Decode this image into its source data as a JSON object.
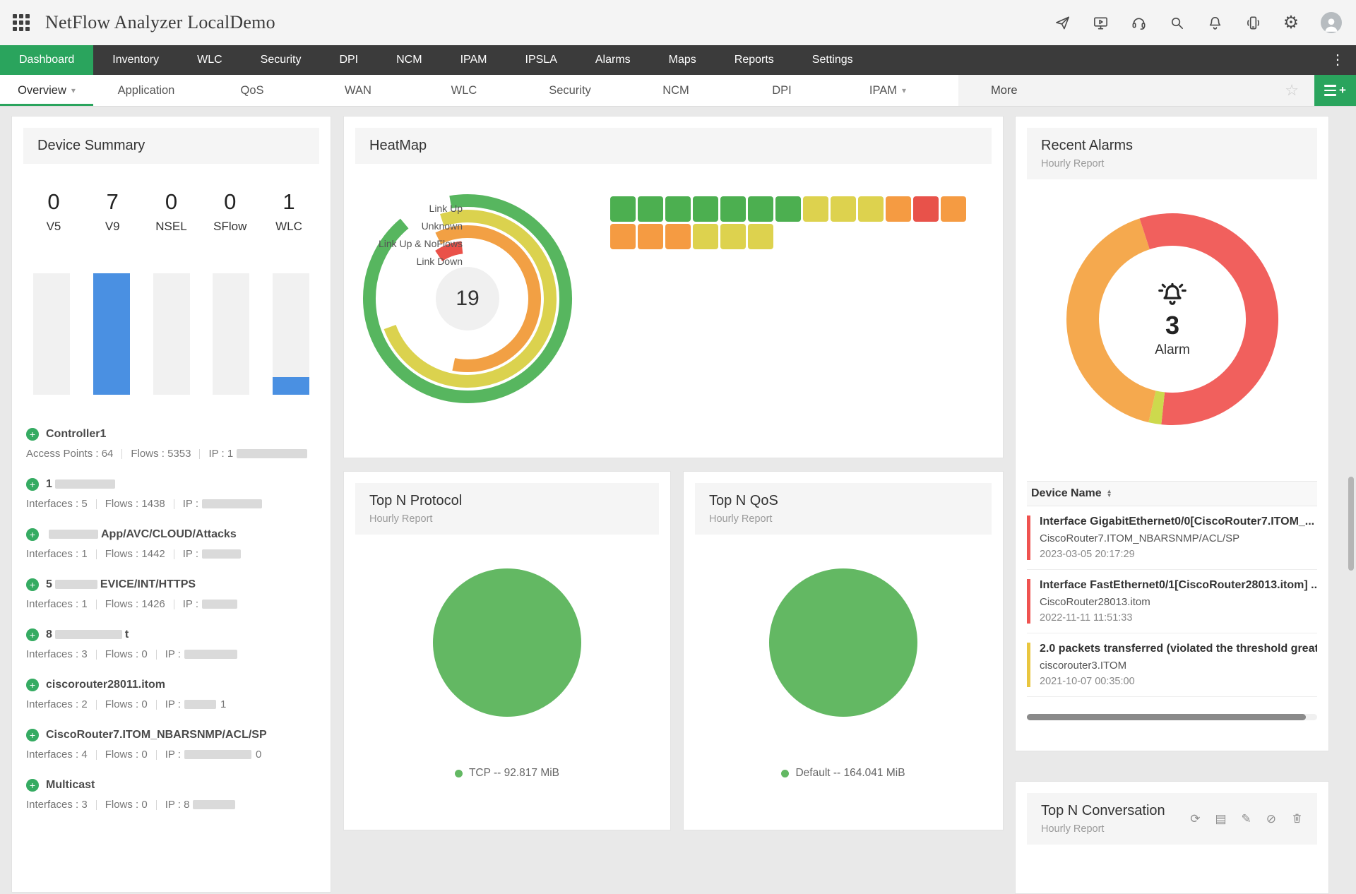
{
  "header": {
    "title": "NetFlow Analyzer LocalDemo"
  },
  "icons": {
    "plus": "+",
    "caret": "▾",
    "star": "☆",
    "more_v": "⋮",
    "gear": "⚙",
    "refresh": "⟳",
    "report": "▤",
    "edit": "✎",
    "embed": "⊘",
    "sort_up": "▲",
    "sort_down": "▼"
  },
  "nav": {
    "items": [
      {
        "label": "Dashboard",
        "active": true
      },
      {
        "label": "Inventory"
      },
      {
        "label": "WLC"
      },
      {
        "label": "Security"
      },
      {
        "label": "DPI"
      },
      {
        "label": "NCM"
      },
      {
        "label": "IPAM"
      },
      {
        "label": "IPSLA"
      },
      {
        "label": "Alarms"
      },
      {
        "label": "Maps"
      },
      {
        "label": "Reports"
      },
      {
        "label": "Settings"
      }
    ]
  },
  "subnav": {
    "tabs": [
      {
        "label": "Overview",
        "active": true,
        "caret": true
      },
      {
        "label": "Application"
      },
      {
        "label": "QoS"
      },
      {
        "label": "WAN"
      },
      {
        "label": "WLC"
      },
      {
        "label": "Security"
      },
      {
        "label": "NCM"
      },
      {
        "label": "DPI"
      },
      {
        "label": "IPAM",
        "caret": true
      }
    ],
    "more_label": "More"
  },
  "device_summary": {
    "title": "Device Summary",
    "bar_max": 7,
    "bar_color": "#4a90e2",
    "stats": [
      {
        "label": "V5",
        "value": "0"
      },
      {
        "label": "V9",
        "value": "7"
      },
      {
        "label": "NSEL",
        "value": "0"
      },
      {
        "label": "SFlow",
        "value": "0"
      },
      {
        "label": "WLC",
        "value": "1"
      }
    ],
    "devices": [
      {
        "name_pre": "Controller1",
        "name_redact_w": 0,
        "name_post": "",
        "metrics": [
          {
            "label": "Access Points",
            "value": "64"
          },
          {
            "label": "Flows",
            "value": "5353"
          }
        ],
        "ip_pre": "1",
        "ip_redact_w": 100,
        "ip_post": ""
      },
      {
        "name_pre": "1",
        "name_redact_w": 85,
        "name_post": "",
        "metrics": [
          {
            "label": "Interfaces",
            "value": "5"
          },
          {
            "label": "Flows",
            "value": "1438"
          }
        ],
        "ip_pre": "",
        "ip_redact_w": 85,
        "ip_post": ""
      },
      {
        "name_pre": "",
        "name_redact_w": 70,
        "name_post": "App/AVC/CLOUD/Attacks",
        "metrics": [
          {
            "label": "Interfaces",
            "value": "1"
          },
          {
            "label": "Flows",
            "value": "1442"
          }
        ],
        "ip_pre": "",
        "ip_redact_w": 55,
        "ip_post": ""
      },
      {
        "name_pre": "5",
        "name_redact_w": 60,
        "name_post": "EVICE/INT/HTTPS",
        "metrics": [
          {
            "label": "Interfaces",
            "value": "1"
          },
          {
            "label": "Flows",
            "value": "1426"
          }
        ],
        "ip_pre": "",
        "ip_redact_w": 50,
        "ip_post": ""
      },
      {
        "name_pre": "8",
        "name_redact_w": 95,
        "name_post": "t",
        "metrics": [
          {
            "label": "Interfaces",
            "value": "3"
          },
          {
            "label": "Flows",
            "value": "0"
          }
        ],
        "ip_pre": "",
        "ip_redact_w": 75,
        "ip_post": ""
      },
      {
        "name_pre": "ciscorouter28011.itom",
        "name_redact_w": 0,
        "name_post": "",
        "metrics": [
          {
            "label": "Interfaces",
            "value": "2"
          },
          {
            "label": "Flows",
            "value": "0"
          }
        ],
        "ip_pre": "",
        "ip_redact_w": 45,
        "ip_post": "1"
      },
      {
        "name_pre": "CiscoRouter7.ITOM_NBARSNMP/ACL/SP",
        "name_redact_w": 0,
        "name_post": "",
        "metrics": [
          {
            "label": "Interfaces",
            "value": "4"
          },
          {
            "label": "Flows",
            "value": "0"
          }
        ],
        "ip_pre": "",
        "ip_redact_w": 95,
        "ip_post": "0"
      },
      {
        "name_pre": "Multicast",
        "name_redact_w": 0,
        "name_post": "",
        "metrics": [
          {
            "label": "Interfaces",
            "value": "3"
          },
          {
            "label": "Flows",
            "value": "0"
          }
        ],
        "ip_pre": "8",
        "ip_redact_w": 60,
        "ip_post": ""
      }
    ]
  },
  "heatmap": {
    "title": "HeatMap",
    "center_value": "19",
    "gauge_rings": [
      {
        "label": "Link Up",
        "color": "#57b65f",
        "sweep": 330
      },
      {
        "label": "Unknown",
        "color": "#dbd24e",
        "sweep": 268
      },
      {
        "label": "Link Up & NoFlows",
        "color": "#f2a044",
        "sweep": 218
      },
      {
        "label": "Link Down",
        "color": "#ea5149",
        "sweep": 28
      }
    ],
    "palette": {
      "g": "#4caf50",
      "y": "#ddd24e",
      "o": "#f59b42",
      "r": "#e8524a"
    },
    "grid_rows": [
      [
        "g",
        "g",
        "g",
        "g",
        "g",
        "g",
        "g",
        "y",
        "y",
        "y",
        "o",
        "r",
        "o"
      ],
      [
        "o",
        "o",
        "o",
        "y",
        "y",
        "y"
      ]
    ]
  },
  "recent_alarms": {
    "title": "Recent Alarms",
    "subtitle": "Hourly Report",
    "center_value": "3",
    "center_label": "Alarm",
    "donut_segments": [
      {
        "color": "#f1605d",
        "deg": 186
      },
      {
        "color": "#cdd94d",
        "deg": 7
      },
      {
        "color": "#f5a94e",
        "deg": 149
      },
      {
        "color": "#f1605d",
        "deg": 18
      }
    ],
    "table_header": "Device Name",
    "alarms": [
      {
        "severity": "#ef5350",
        "title": "Interface GigabitEthernet0/0[CiscoRouter7.ITOM_...",
        "device": "CiscoRouter7.ITOM_NBARSNMP/ACL/SP",
        "time": "2023-03-05 20:17:29"
      },
      {
        "severity": "#ef5350",
        "title": "Interface FastEthernet0/1[CiscoRouter28013.itom] ...",
        "device": "CiscoRouter28013.itom",
        "time": "2022-11-11 11:51:33"
      },
      {
        "severity": "#e9c63f",
        "title": "2.0 packets transferred (violated the threshold great...",
        "device": "ciscorouter3.ITOM",
        "time": "2021-10-07 00:35:00"
      }
    ]
  },
  "top_n_protocol": {
    "title": "Top N Protocol",
    "subtitle": "Hourly Report",
    "slice_color": "#63b863",
    "legend": "TCP -- 92.817 MiB",
    "chart": {
      "type": "pie",
      "slices": [
        {
          "label": "TCP",
          "value": 92.817,
          "unit": "MiB",
          "percent": 100
        }
      ]
    }
  },
  "top_n_qos": {
    "title": "Top N QoS",
    "subtitle": "Hourly Report",
    "slice_color": "#63b863",
    "legend": "Default -- 164.041 MiB",
    "chart": {
      "type": "pie",
      "slices": [
        {
          "label": "Default",
          "value": 164.041,
          "unit": "MiB",
          "percent": 100
        }
      ]
    }
  },
  "top_n_conversation": {
    "title": "Top N Conversation",
    "subtitle": "Hourly Report"
  },
  "accent": {
    "green": "#2aa45d"
  }
}
